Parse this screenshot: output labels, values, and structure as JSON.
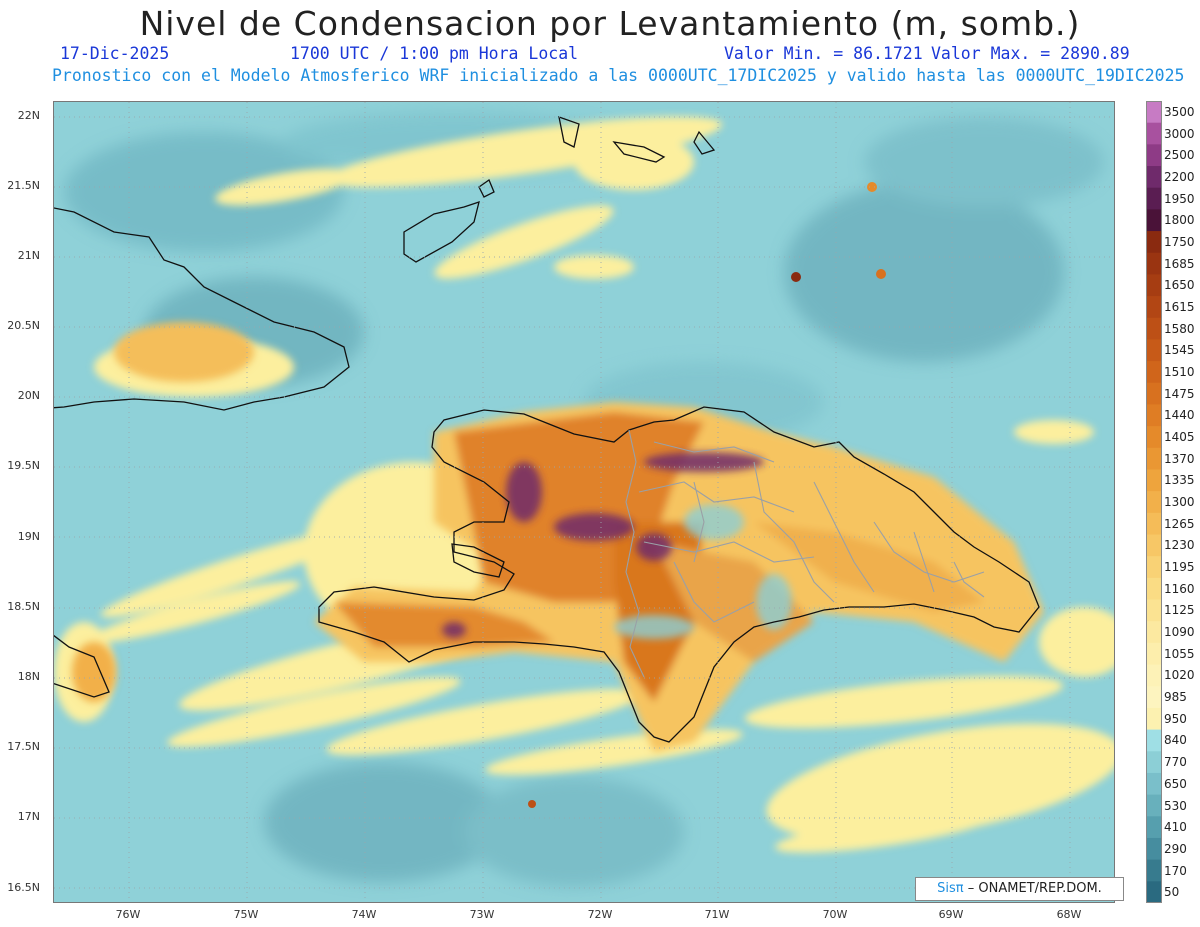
{
  "header": {
    "title": "Nivel de Condensacion por Levantamiento (m, somb.)",
    "date": "17-Dic-2025",
    "time": "1700 UTC / 1:00 pm Hora Local",
    "min_value": "Valor Min. = 86.1721",
    "max_value": "Valor Max. = 2890.89",
    "model_info": "Pronostico con el Modelo Atmosferico WRF inicializado a las 0000UTC_17DIC2025 y valido hasta las  0000UTC_19DIC2025"
  },
  "axes": {
    "lat_labels": [
      "22N",
      "21.5N",
      "21N",
      "20.5N",
      "20N",
      "19.5N",
      "19N",
      "18.5N",
      "18N",
      "17.5N",
      "17N",
      "16.5N"
    ],
    "lon_labels": [
      "76W",
      "75W",
      "74W",
      "73W",
      "72W",
      "71W",
      "70W",
      "69W",
      "68W"
    ]
  },
  "colorbar": {
    "labels": [
      "3500",
      "3000",
      "2500",
      "2200",
      "1950",
      "1800",
      "1750",
      "1685",
      "1650",
      "1615",
      "1580",
      "1545",
      "1510",
      "1475",
      "1440",
      "1405",
      "1370",
      "1335",
      "1300",
      "1265",
      "1230",
      "1195",
      "1160",
      "1125",
      "1090",
      "1055",
      "1020",
      "985",
      "950",
      "840",
      "770",
      "650",
      "530",
      "410",
      "290",
      "170",
      "50"
    ],
    "colors": [
      "#c77bc4",
      "#a8519f",
      "#8e3b86",
      "#6f2a6b",
      "#5a1d52",
      "#4a1238",
      "#8a2a10",
      "#9a3411",
      "#a63d12",
      "#b24614",
      "#bd5016",
      "#c75a18",
      "#d0651b",
      "#d8711f",
      "#df7d24",
      "#e58a2a",
      "#ea9733",
      "#eea43d",
      "#f2b04a",
      "#f5bc58",
      "#f7c766",
      "#f9d275",
      "#fadc84",
      "#fbe392",
      "#fce9a0",
      "#fdeeac",
      "#fdf2b7",
      "#fdf4bf",
      "#fcf1b0",
      "#9fdfe5",
      "#8ccfd6",
      "#7abfca",
      "#68b0bc",
      "#569fae",
      "#468d9f",
      "#377b8e",
      "#2a6a80"
    ]
  },
  "credit": {
    "brand": "Sisπ",
    "org": "ONAMET/REP.DOM."
  }
}
